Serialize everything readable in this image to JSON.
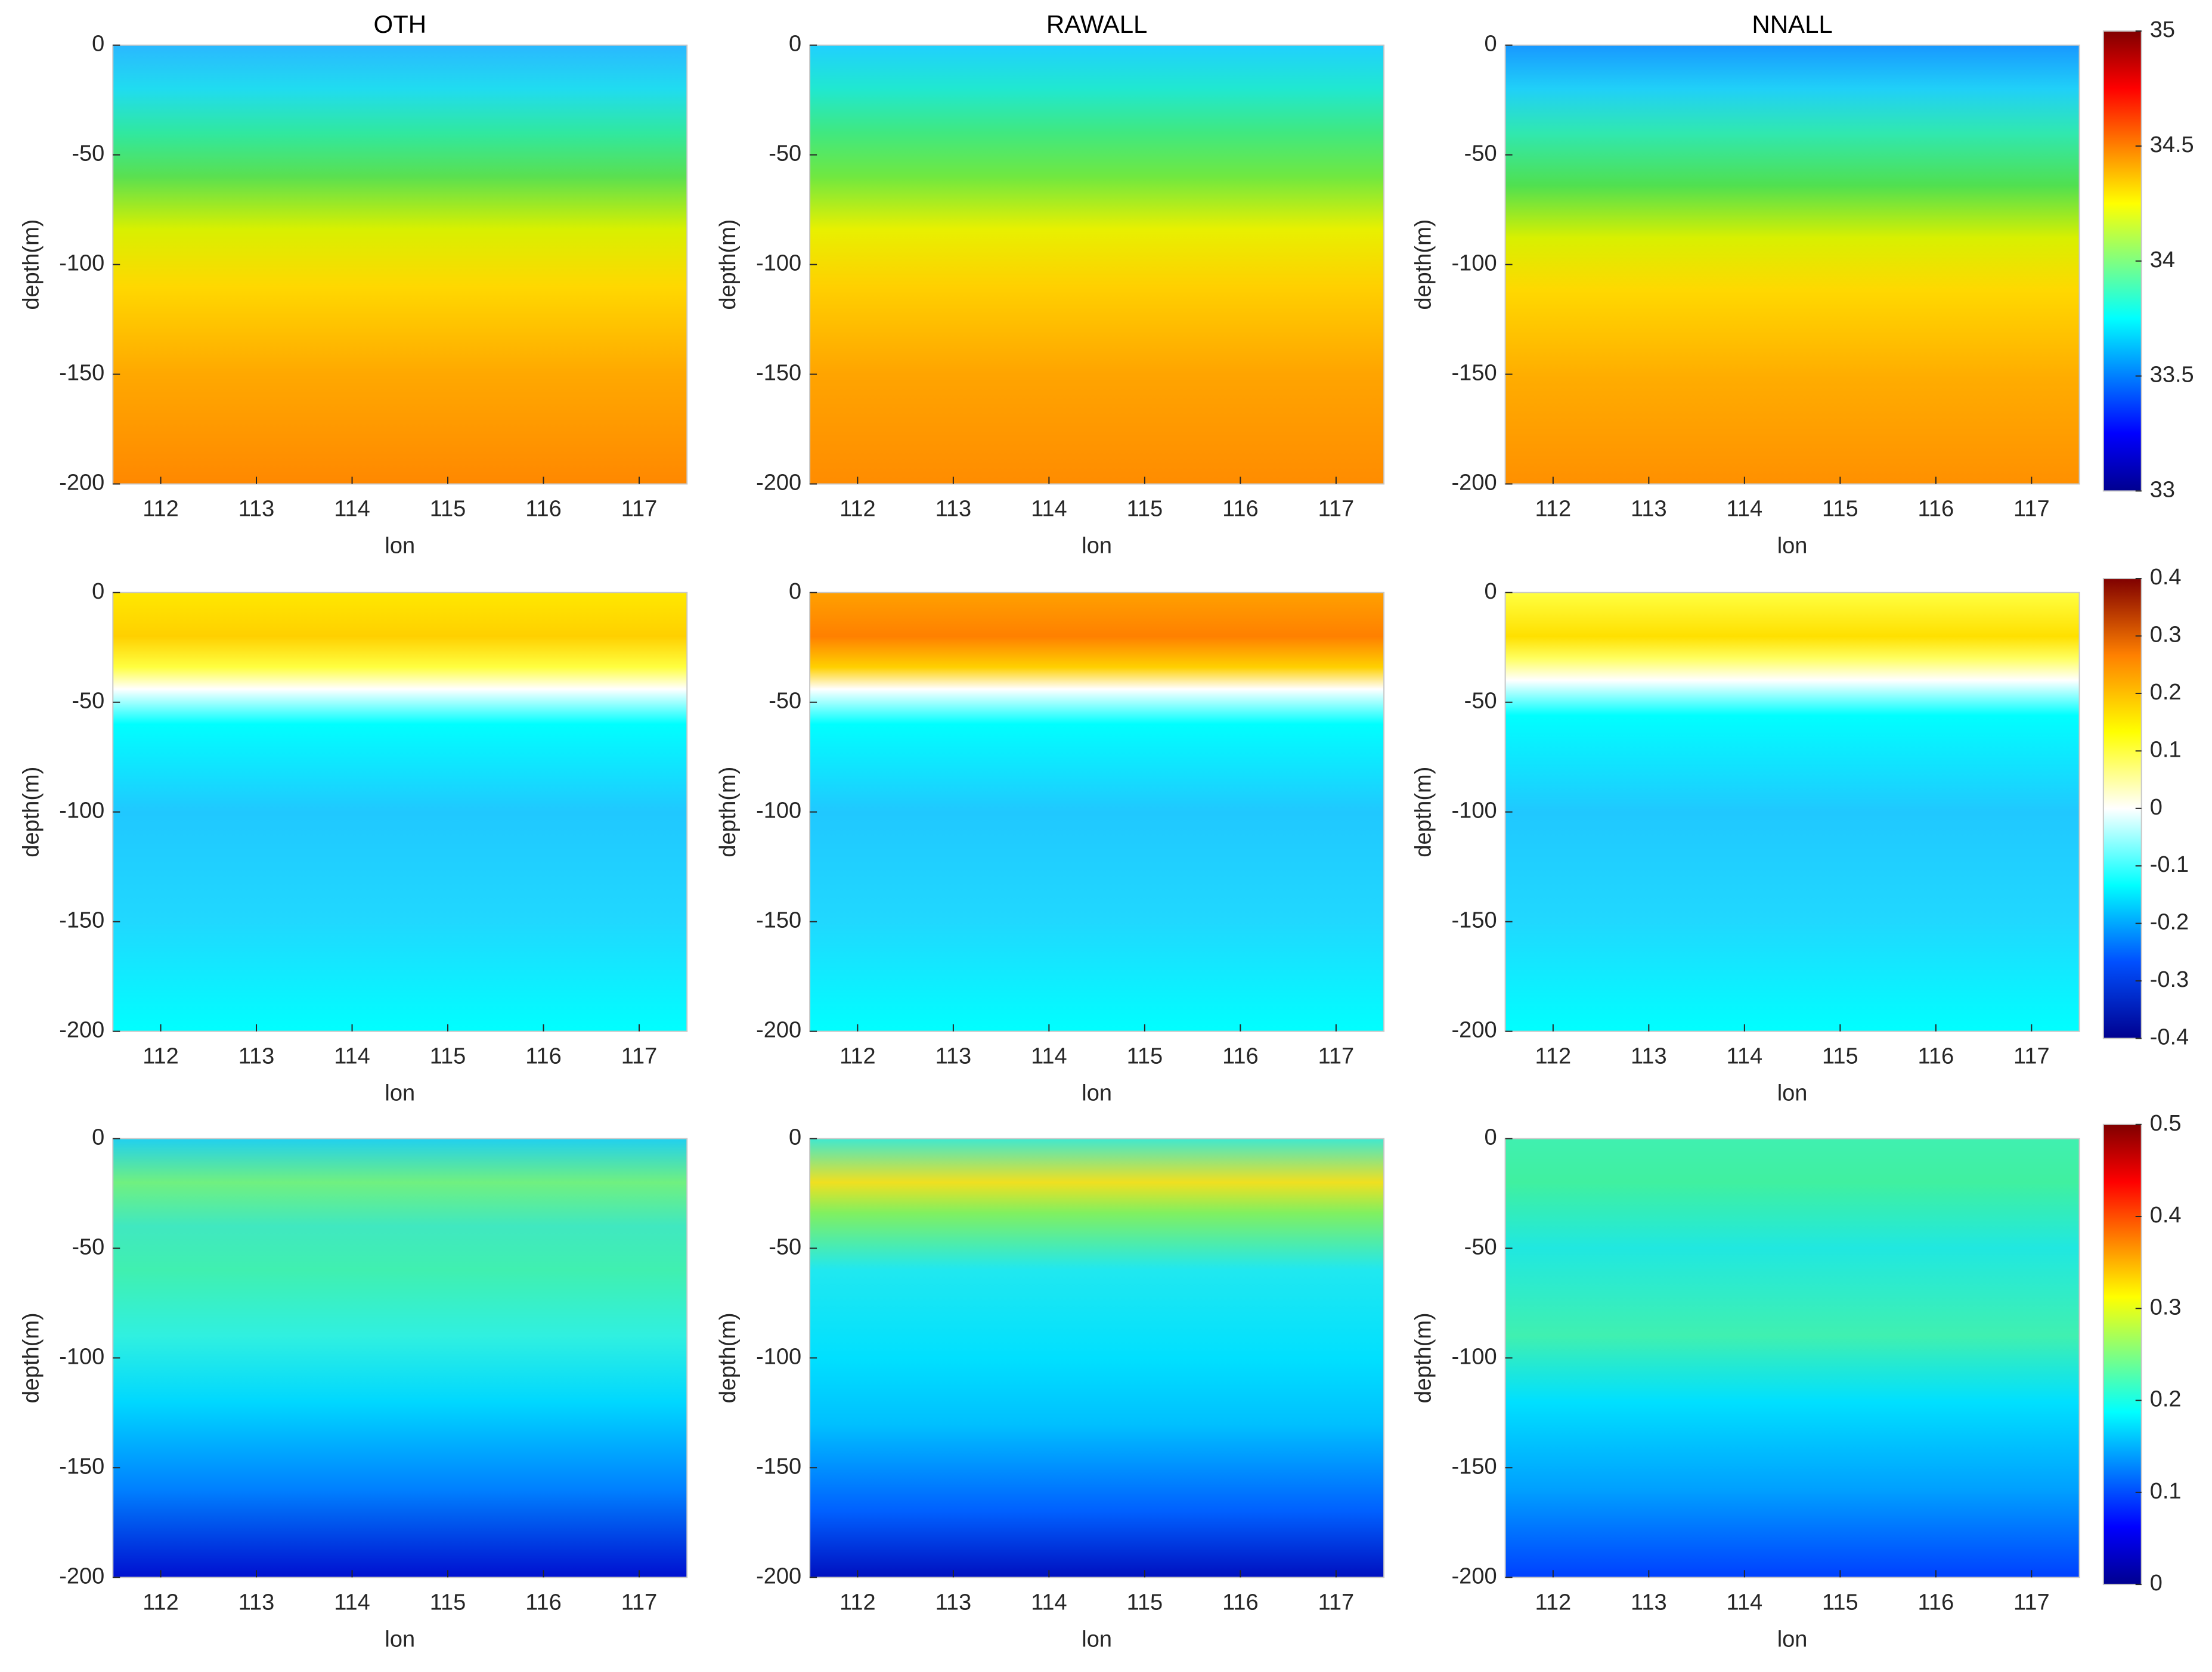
{
  "chart_data": [
    {
      "type": "contour",
      "title": "OTH",
      "xlabel": "lon",
      "ylabel": "depth(m)",
      "xlim": [
        111.5,
        117.5
      ],
      "ylim": [
        -200,
        0
      ],
      "xticks": [
        112,
        113,
        114,
        115,
        116,
        117
      ],
      "yticks": [
        -200,
        -150,
        -100,
        -50,
        0
      ]
    },
    {
      "type": "contour",
      "title": "RAWALL",
      "xlabel": "lon",
      "ylabel": "depth(m)",
      "xlim": [
        111.5,
        117.5
      ],
      "ylim": [
        -200,
        0
      ],
      "xticks": [
        112,
        113,
        114,
        115,
        116,
        117
      ],
      "yticks": [
        -200,
        -150,
        -100,
        -50,
        0
      ]
    },
    {
      "type": "contour",
      "title": "NNALL",
      "xlabel": "lon",
      "ylabel": "depth(m)",
      "xlim": [
        111.5,
        117.5
      ],
      "ylim": [
        -200,
        0
      ],
      "xticks": [
        112,
        113,
        114,
        115,
        116,
        117
      ],
      "yticks": [
        -200,
        -150,
        -100,
        -50,
        0
      ],
      "clim": [
        33,
        35
      ],
      "cticks": [
        33,
        33.5,
        34,
        34.5,
        35
      ],
      "colormap": [
        "#00008f",
        "#0000ff",
        "#0080ff",
        "#00ffff",
        "#80ff80",
        "#ffff00",
        "#ff8000",
        "#ff0000",
        "#800000"
      ]
    },
    {
      "type": "contour",
      "xlabel": "lon",
      "ylabel": "depth(m)",
      "xlim": [
        111.5,
        117.5
      ],
      "ylim": [
        -200,
        0
      ],
      "xticks": [
        112,
        113,
        114,
        115,
        116,
        117
      ],
      "yticks": [
        -200,
        -150,
        -100,
        -50,
        0
      ]
    },
    {
      "type": "contour",
      "xlabel": "lon",
      "ylabel": "depth(m)",
      "xlim": [
        111.5,
        117.5
      ],
      "ylim": [
        -200,
        0
      ],
      "xticks": [
        112,
        113,
        114,
        115,
        116,
        117
      ],
      "yticks": [
        -200,
        -150,
        -100,
        -50,
        0
      ]
    },
    {
      "type": "contour",
      "xlabel": "lon",
      "ylabel": "depth(m)",
      "xlim": [
        111.5,
        117.5
      ],
      "ylim": [
        -200,
        0
      ],
      "xticks": [
        112,
        113,
        114,
        115,
        116,
        117
      ],
      "yticks": [
        -200,
        -150,
        -100,
        -50,
        0
      ],
      "clim": [
        -0.4,
        0.4
      ],
      "cticks": [
        -0.4,
        -0.3,
        -0.2,
        -0.1,
        0,
        0.1,
        0.2,
        0.3,
        0.4
      ],
      "colormap": [
        "#00008f",
        "#0050ff",
        "#00ffff",
        "#ffffff",
        "#ffff00",
        "#ff8000",
        "#800000"
      ]
    },
    {
      "type": "contour",
      "xlabel": "lon",
      "ylabel": "depth(m)",
      "xlim": [
        111.5,
        117.5
      ],
      "ylim": [
        -200,
        0
      ],
      "xticks": [
        112,
        113,
        114,
        115,
        116,
        117
      ],
      "yticks": [
        -200,
        -150,
        -100,
        -50,
        0
      ]
    },
    {
      "type": "contour",
      "xlabel": "lon",
      "ylabel": "depth(m)",
      "xlim": [
        111.5,
        117.5
      ],
      "ylim": [
        -200,
        0
      ],
      "xticks": [
        112,
        113,
        114,
        115,
        116,
        117
      ],
      "yticks": [
        -200,
        -150,
        -100,
        -50,
        0
      ]
    },
    {
      "type": "contour",
      "xlabel": "lon",
      "ylabel": "depth(m)",
      "xlim": [
        111.5,
        117.5
      ],
      "ylim": [
        -200,
        0
      ],
      "xticks": [
        112,
        113,
        114,
        115,
        116,
        117
      ],
      "yticks": [
        -200,
        -150,
        -100,
        -50,
        0
      ],
      "clim": [
        0,
        0.5
      ],
      "cticks": [
        0,
        0.1,
        0.2,
        0.3,
        0.4,
        0.5
      ],
      "colormap": [
        "#00008f",
        "#0000ff",
        "#0080ff",
        "#00ffff",
        "#80ff80",
        "#ffff00",
        "#ff8000",
        "#ff0000",
        "#800000"
      ]
    }
  ]
}
